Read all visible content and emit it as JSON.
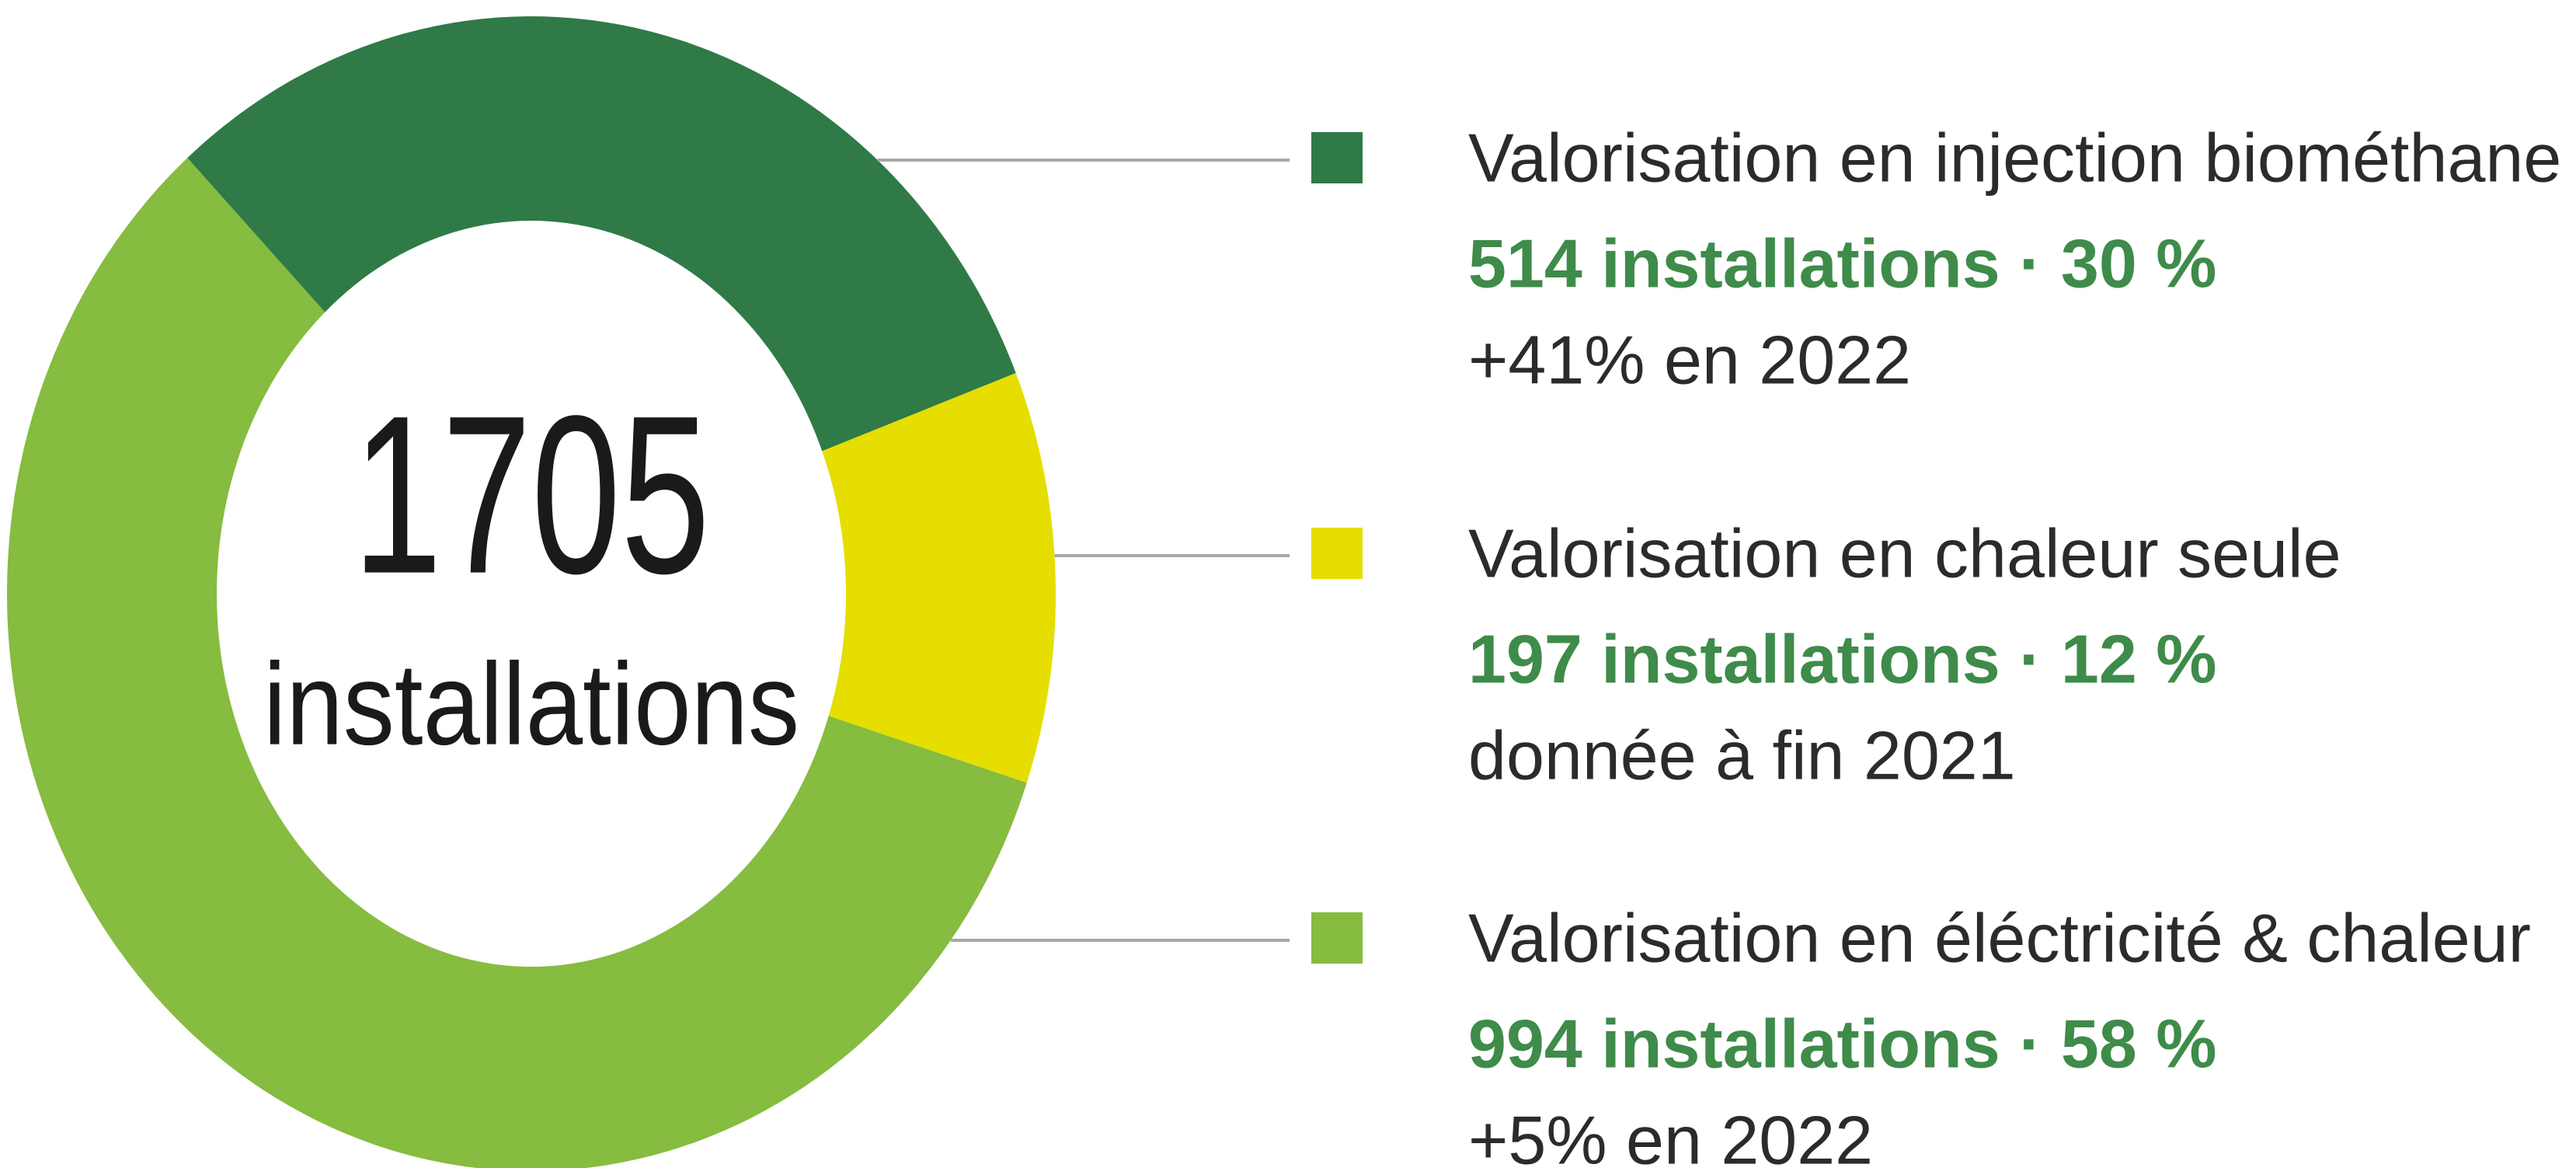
{
  "chart_data": {
    "type": "donut",
    "categories": [
      "Valorisation en injection biométhane",
      "Valorisation en chaleur seule",
      "Valorisation en éléctricité & chaleur"
    ],
    "values": [
      514,
      197,
      994
    ],
    "value_labels": [
      "514 installations · 30 %",
      "197 installations · 12 %",
      "994 installations · 58 %"
    ],
    "notes": [
      "+41% en 2022",
      "donnée à fin 2021",
      "+5% en 2022"
    ],
    "colors": [
      "#2f7a46",
      "#e5de00",
      "#86bc3f"
    ],
    "center_value": 1705,
    "center_label": "installations"
  }
}
